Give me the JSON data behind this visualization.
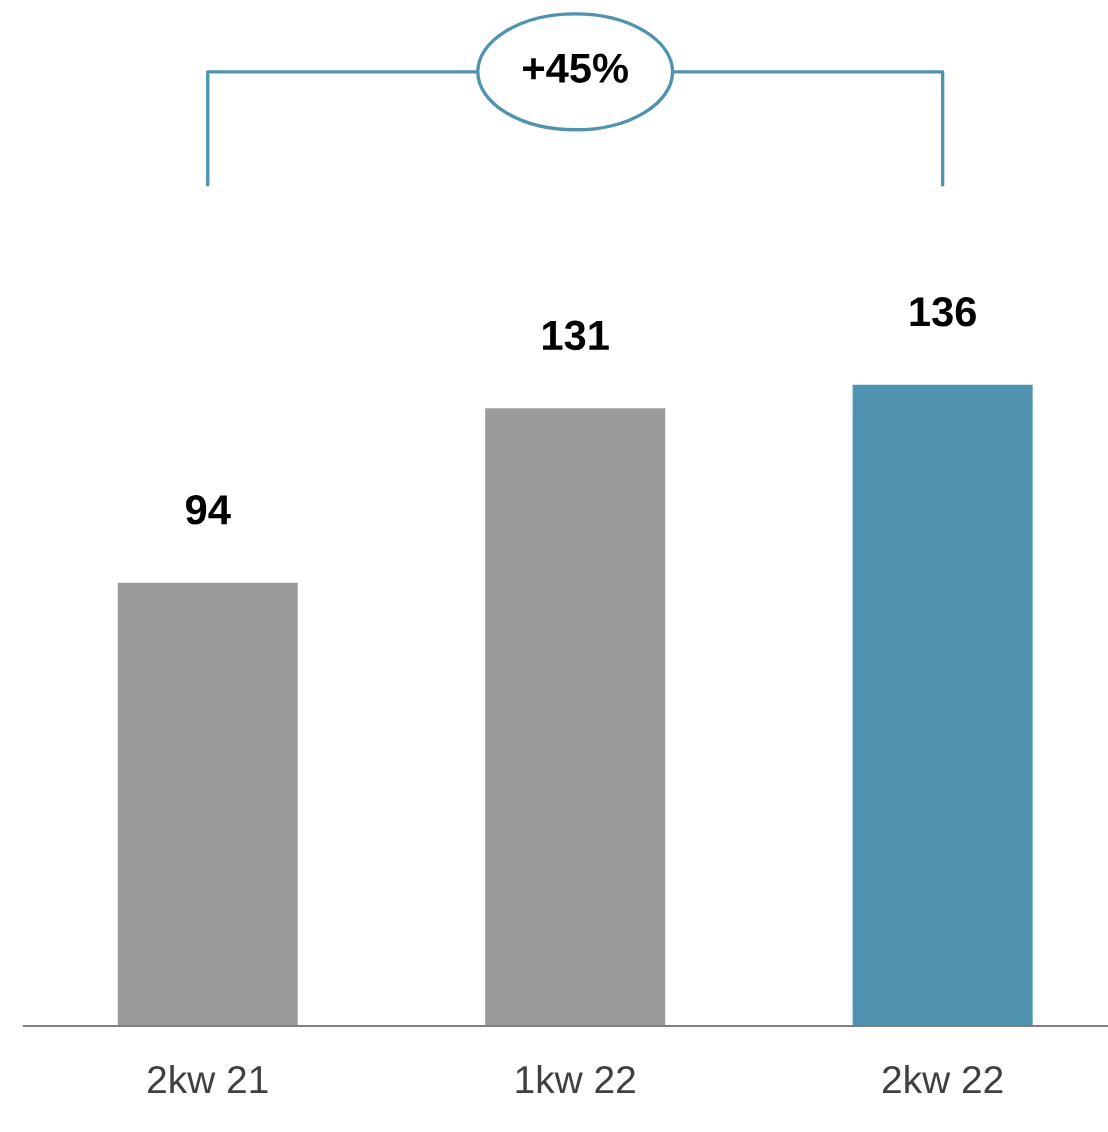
{
  "chart_data": {
    "type": "bar",
    "categories": [
      "2kw 21",
      "1kw 22",
      "2kw 22"
    ],
    "values": [
      94,
      131,
      136
    ],
    "colors": [
      "#9b9b9b",
      "#9b9b9b",
      "#4f93b0"
    ],
    "data_labels": true,
    "annotations": [
      "+45%"
    ]
  }
}
